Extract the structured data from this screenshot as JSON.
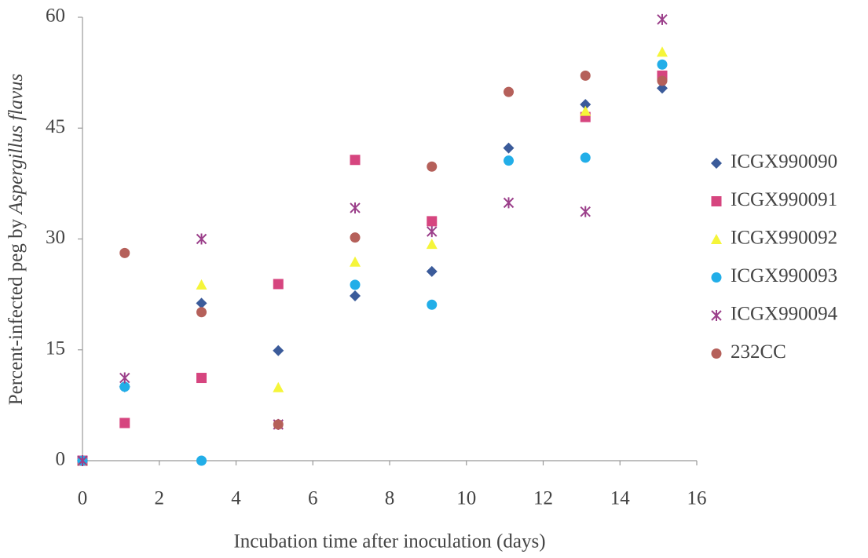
{
  "chart_data": {
    "type": "scatter",
    "x_label": "Incubation time after inoculation (days)",
    "y_label": [
      "Percent-infected peg by",
      "Aspergillus flavus"
    ],
    "x": [
      0,
      1.1,
      3.1,
      5.1,
      7.1,
      9.1,
      11.1,
      13.1,
      15.1
    ],
    "series": [
      {
        "name": "ICGX990090",
        "color": "#3b5b9a",
        "marker": "diamond",
        "values": [
          0,
          10,
          21.3,
          14.9,
          22.3,
          25.6,
          42.3,
          48.2,
          50.4
        ]
      },
      {
        "name": "ICGX990091",
        "color": "#d6457f",
        "marker": "square",
        "values": [
          0,
          5.1,
          11.2,
          23.9,
          40.7,
          32.4,
          null,
          46.5,
          52.1
        ]
      },
      {
        "name": "ICGX990092",
        "color": "#f5f53a",
        "marker": "triangle",
        "values": [
          0,
          null,
          23.8,
          9.9,
          26.9,
          29.3,
          null,
          47.3,
          55.3
        ]
      },
      {
        "name": "ICGX990093",
        "color": "#22aee8",
        "marker": "circle",
        "values": [
          0,
          10,
          0,
          null,
          23.8,
          21.1,
          40.6,
          41,
          53.6
        ]
      },
      {
        "name": "ICGX990094",
        "color": "#9b3f8a",
        "marker": "star",
        "values": [
          0,
          11.2,
          30,
          4.9,
          34.2,
          31,
          34.9,
          33.7,
          59.7
        ]
      },
      {
        "name": "232CC",
        "color": "#b5605a",
        "marker": "circle",
        "values": [
          null,
          28.1,
          20.1,
          4.9,
          30.2,
          39.8,
          49.9,
          52.1,
          51.4
        ]
      }
    ],
    "xlim": [
      0,
      16
    ],
    "xticks": [
      0,
      2,
      4,
      6,
      8,
      10,
      12,
      14,
      16
    ],
    "ylim": [
      0,
      60
    ],
    "yticks": [
      0,
      15,
      30,
      45,
      60
    ],
    "legend": "right"
  }
}
